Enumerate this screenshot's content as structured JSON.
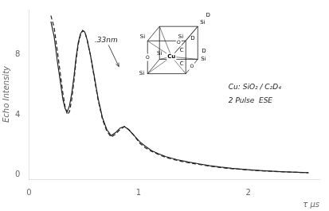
{
  "chart_data": {
    "type": "line",
    "xlabel": "τ μs",
    "ylabel": "Echo Intensity",
    "x": [
      0.2,
      0.23,
      0.26,
      0.29,
      0.31,
      0.33,
      0.35,
      0.37,
      0.39,
      0.41,
      0.43,
      0.45,
      0.47,
      0.49,
      0.51,
      0.53,
      0.56,
      0.59,
      0.63,
      0.67,
      0.71,
      0.75,
      0.79,
      0.83,
      0.87,
      0.91,
      0.96,
      1.01,
      1.06,
      1.12,
      1.18,
      1.25,
      1.35,
      1.45,
      1.55,
      1.65,
      1.75,
      1.85,
      1.95,
      2.1,
      2.3,
      2.55
    ],
    "series": [
      {
        "color": "#222222",
        "line_style": "solid",
        "values": [
          10.2,
          9.2,
          7.5,
          6.0,
          5.0,
          4.4,
          4.2,
          4.6,
          5.4,
          6.5,
          7.8,
          8.8,
          9.4,
          9.6,
          9.5,
          9.0,
          8.0,
          6.8,
          5.1,
          3.8,
          3.0,
          2.6,
          2.8,
          3.1,
          3.2,
          3.0,
          2.6,
          2.2,
          1.9,
          1.6,
          1.4,
          1.2,
          1.0,
          0.85,
          0.72,
          0.6,
          0.5,
          0.42,
          0.36,
          0.28,
          0.2,
          0.13
        ]
      },
      {
        "color": "#222222",
        "line_style": "dashed",
        "values": [
          10.6,
          9.8,
          8.2,
          6.5,
          5.4,
          4.5,
          4.0,
          4.2,
          5.0,
          6.2,
          7.6,
          8.7,
          9.3,
          9.6,
          9.5,
          9.0,
          8.0,
          6.7,
          5.0,
          3.7,
          2.9,
          2.5,
          2.7,
          3.0,
          3.2,
          3.0,
          2.6,
          2.1,
          1.8,
          1.55,
          1.35,
          1.15,
          0.95,
          0.8,
          0.68,
          0.57,
          0.47,
          0.4,
          0.34,
          0.26,
          0.19,
          0.13
        ]
      }
    ],
    "xlim": [
      0.0,
      2.65
    ],
    "ylim": [
      -0.3,
      11.0
    ],
    "xticks": [
      0,
      1,
      2
    ],
    "yticks": [
      0,
      4,
      8
    ],
    "grid": false,
    "annotations": [
      ".33nm",
      "Cu: SiO₂ / C₂D₄",
      "2 Pulse  ESE",
      "Si",
      "Si",
      "Si",
      "Si",
      "Si",
      "Si",
      "Cu",
      "D",
      "D",
      "D",
      "O",
      "O",
      "O",
      "C",
      "C"
    ]
  }
}
